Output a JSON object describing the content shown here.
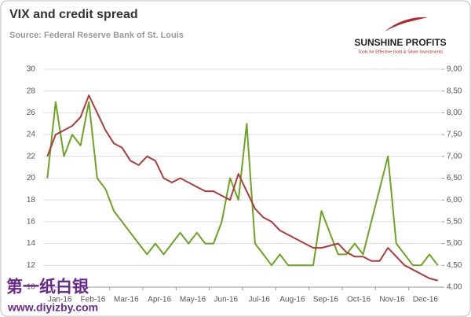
{
  "chart_data": {
    "type": "line",
    "title": "VIX and credit spread",
    "subtitle": "Source: Federal Reserve Bank of St. Louis",
    "categories": [
      "Jan-16",
      null,
      null,
      null,
      "Feb-16",
      null,
      null,
      null,
      "Mar-16",
      null,
      null,
      null,
      "Apr-16",
      null,
      null,
      null,
      "May-16",
      null,
      null,
      null,
      "Jun-16",
      null,
      null,
      null,
      "Jul-16",
      null,
      null,
      null,
      "Aug-16",
      null,
      null,
      null,
      "Sep-16",
      null,
      null,
      null,
      "Oct-16",
      null,
      null,
      null,
      "Nov-16",
      null,
      null,
      null,
      "Dec-16",
      null,
      null,
      null
    ],
    "series": [
      {
        "color": "#6aa521",
        "axis": "y",
        "values": [
          20,
          27,
          22,
          24,
          23,
          27,
          20,
          19,
          17,
          16,
          15,
          14,
          13,
          14,
          13,
          14,
          15,
          14,
          15,
          14,
          14,
          16,
          20,
          18,
          25,
          14,
          13,
          12,
          13,
          12,
          12,
          12,
          12,
          17,
          15,
          13,
          13,
          14,
          13,
          16,
          19,
          22,
          14,
          13,
          12,
          12,
          13,
          12
        ]
      },
      {
        "color": "#b03a3a",
        "axis": "y2",
        "values": [
          7.0,
          7.5,
          7.6,
          7.7,
          7.9,
          8.4,
          8.0,
          7.6,
          7.3,
          7.2,
          6.9,
          6.8,
          7.0,
          6.9,
          6.5,
          6.4,
          6.5,
          6.4,
          6.3,
          6.2,
          6.2,
          6.1,
          6.0,
          6.6,
          6.2,
          5.8,
          5.6,
          5.5,
          5.3,
          5.2,
          5.1,
          5.0,
          4.9,
          4.9,
          4.95,
          5.0,
          4.8,
          4.7,
          4.7,
          4.6,
          4.6,
          4.9,
          4.7,
          4.5,
          4.4,
          4.3,
          4.2,
          4.15
        ]
      }
    ],
    "ylim": [
      10,
      30
    ],
    "yticks": [
      10,
      12,
      14,
      16,
      18,
      20,
      22,
      24,
      26,
      28,
      30
    ],
    "y2lim": [
      4,
      9
    ],
    "y2ticks": [
      {
        "value": 4,
        "label": "4,00"
      },
      {
        "value": 4.5,
        "label": "4,50"
      },
      {
        "value": 5,
        "label": "5,00"
      },
      {
        "value": 5.5,
        "label": "5,50"
      },
      {
        "value": 6,
        "label": "6,00"
      },
      {
        "value": 6.5,
        "label": "6,50"
      },
      {
        "value": 7,
        "label": "7,00"
      },
      {
        "value": 7.5,
        "label": "7,50"
      },
      {
        "value": 8,
        "label": "8,00"
      },
      {
        "value": 8.5,
        "label": "8,50"
      },
      {
        "value": 9,
        "label": "9,00"
      }
    ],
    "grid": true
  },
  "logo": {
    "name": "SUNSHINE PROFITS",
    "tagline": "Tools for Effective Gold & Silver Investments"
  },
  "watermark": {
    "name": "第一纸白银",
    "url": "www.diyizby.com"
  }
}
